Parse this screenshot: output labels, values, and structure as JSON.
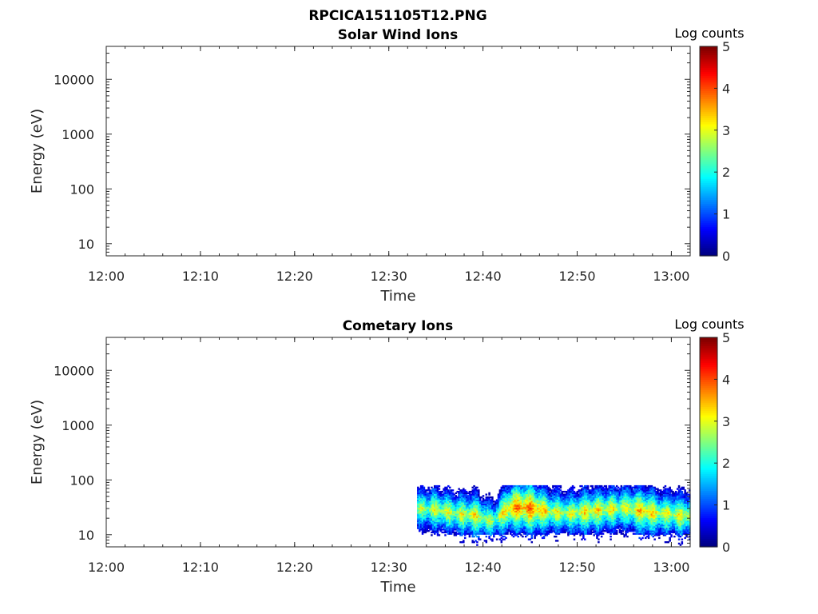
{
  "figure_title": "RPCICA151105T12.PNG",
  "chart_data": [
    {
      "type": "heatmap",
      "title": "Solar Wind Ions",
      "xlabel": "Time",
      "ylabel": "Energy (eV)",
      "x_ticks": [
        "12:00",
        "12:10",
        "12:20",
        "12:30",
        "12:40",
        "12:50",
        "13:00"
      ],
      "y_ticks": [
        10,
        100,
        1000,
        10000
      ],
      "y_scale": "log",
      "ylim": [
        6,
        40000
      ],
      "xlim": [
        "12:00",
        "13:02"
      ],
      "colorbar": {
        "label": "Log counts",
        "ticks": [
          0,
          1,
          2,
          3,
          4,
          5
        ],
        "range": [
          0,
          5
        ],
        "colormap": "jet"
      },
      "data": []
    },
    {
      "type": "heatmap",
      "title": "Cometary Ions",
      "xlabel": "Time",
      "ylabel": "Energy (eV)",
      "x_ticks": [
        "12:00",
        "12:10",
        "12:20",
        "12:30",
        "12:40",
        "12:50",
        "13:00"
      ],
      "y_ticks": [
        10,
        100,
        1000,
        10000
      ],
      "y_scale": "log",
      "ylim": [
        6,
        40000
      ],
      "xlim": [
        "12:00",
        "13:02"
      ],
      "colorbar": {
        "label": "Log counts",
        "ticks": [
          0,
          1,
          2,
          3,
          4,
          5
        ],
        "range": [
          0,
          5
        ],
        "colormap": "jet"
      },
      "data_time_range": [
        "12:33",
        "13:02"
      ],
      "data_energy_range": [
        10,
        80
      ],
      "peak_energy_profile": [
        {
          "t": "12:33",
          "e": 30,
          "v": 2.6
        },
        {
          "t": "12:35",
          "e": 28,
          "v": 2.9
        },
        {
          "t": "12:37",
          "e": 24,
          "v": 2.8
        },
        {
          "t": "12:39",
          "e": 22,
          "v": 3.1
        },
        {
          "t": "12:41",
          "e": 17,
          "v": 2.5
        },
        {
          "t": "12:43",
          "e": 32,
          "v": 3.6
        },
        {
          "t": "12:45",
          "e": 30,
          "v": 3.8
        },
        {
          "t": "12:47",
          "e": 26,
          "v": 3.0
        },
        {
          "t": "12:49",
          "e": 24,
          "v": 2.8
        },
        {
          "t": "12:51",
          "e": 26,
          "v": 3.2
        },
        {
          "t": "12:53",
          "e": 28,
          "v": 3.0
        },
        {
          "t": "12:55",
          "e": 30,
          "v": 2.9
        },
        {
          "t": "12:57",
          "e": 26,
          "v": 3.4
        },
        {
          "t": "12:59",
          "e": 24,
          "v": 2.9
        },
        {
          "t": "13:01",
          "e": 22,
          "v": 3.0
        }
      ]
    }
  ]
}
